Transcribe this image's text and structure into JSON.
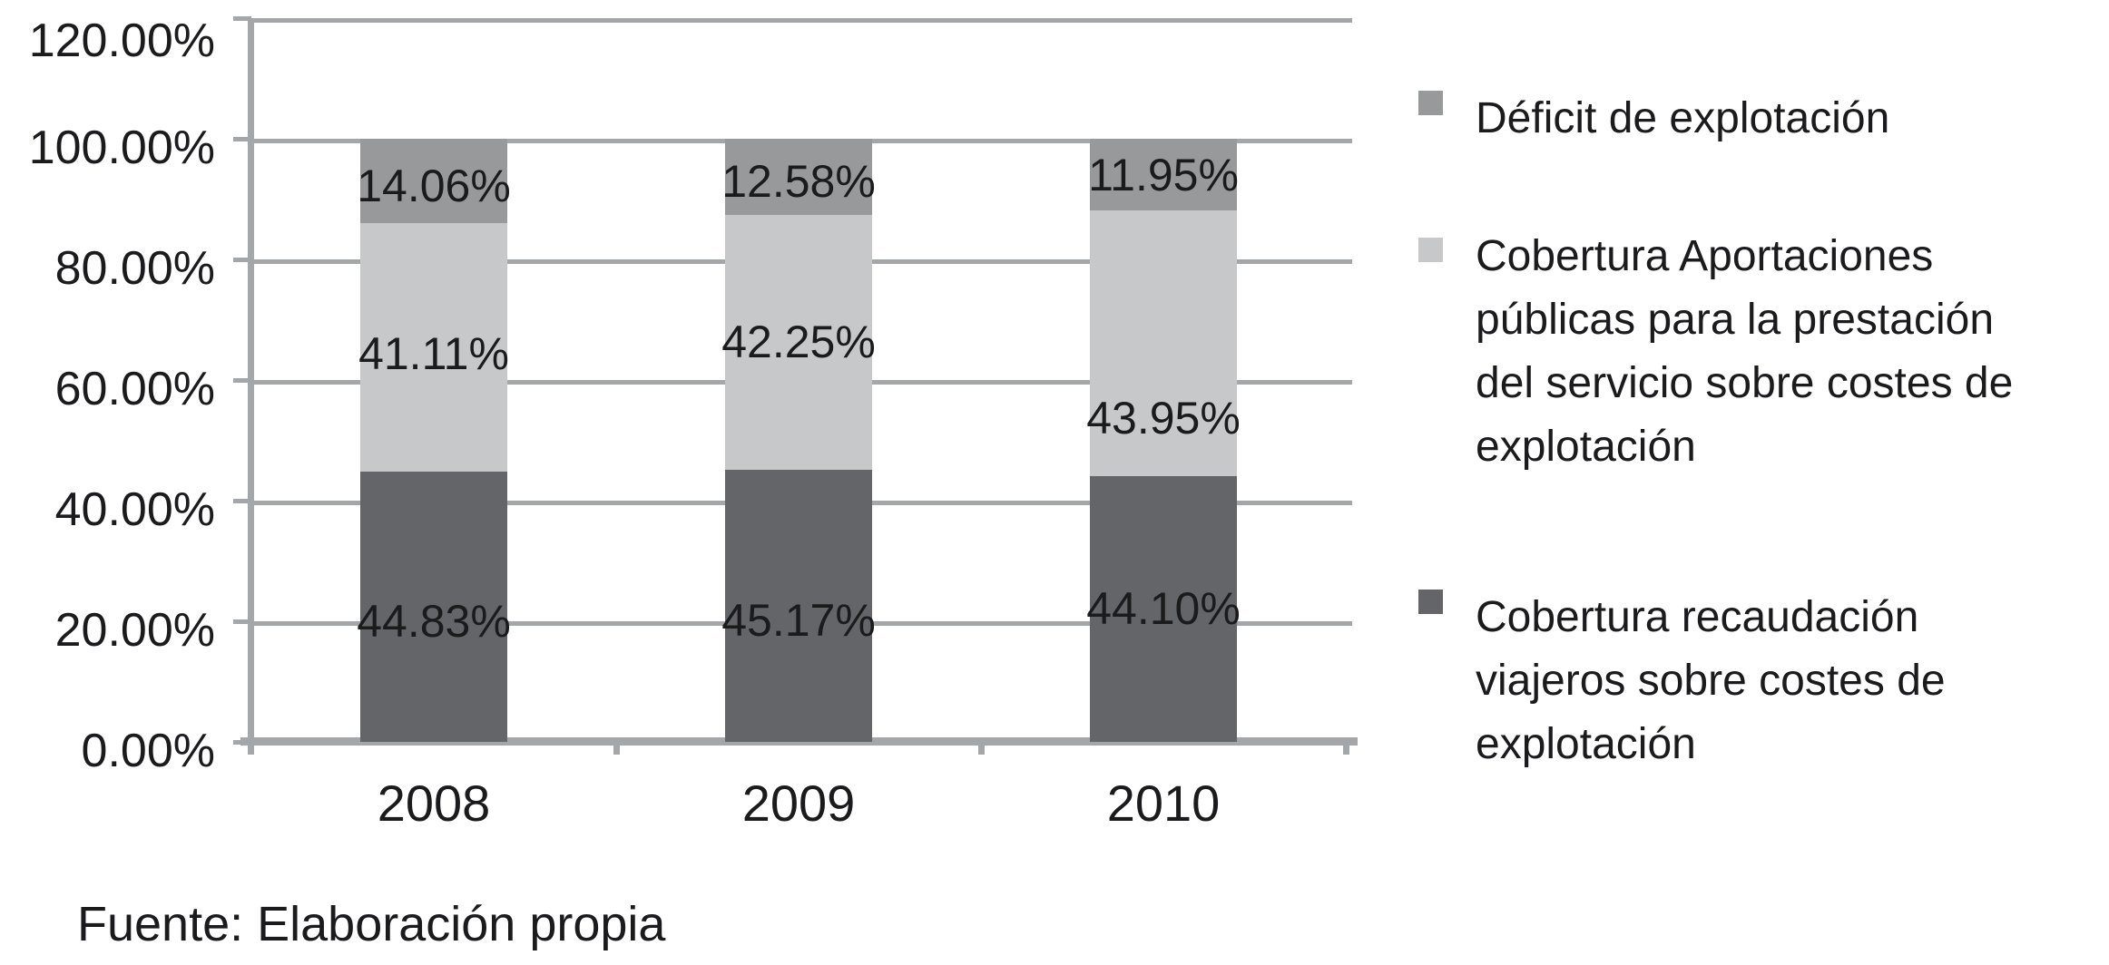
{
  "chart_data": {
    "type": "bar",
    "stacked": true,
    "orientation": "vertical",
    "categories": [
      "2008",
      "2009",
      "2010"
    ],
    "series": [
      {
        "name": "Cobertura recaudación viajeros sobre costes de explotación",
        "color": "#646569",
        "values": [
          44.83,
          45.17,
          44.1
        ],
        "label_dy": [
          16,
          16,
          0
        ]
      },
      {
        "name": "Cobertura Aportaciones públicas para la prestación del servicio sobre costes de explotación",
        "color": "#c7c8ca",
        "values": [
          41.11,
          42.25,
          43.95
        ],
        "label_dy": [
          7,
          0,
          82
        ]
      },
      {
        "name": "Déficit de explotación",
        "color": "#98999b",
        "values": [
          14.06,
          12.58,
          11.95
        ],
        "label_dy": [
          5,
          5,
          0
        ]
      }
    ],
    "value_labels": [
      [
        "44.83%",
        "45.17%",
        "44.10%"
      ],
      [
        "41.11%",
        "42.25%",
        "43.95%"
      ],
      [
        "14.06%",
        "12.58%",
        "11.95%"
      ]
    ],
    "title": "",
    "xlabel": "",
    "ylabel": "",
    "ylim": [
      0,
      120
    ],
    "y_tick_step": 20,
    "y_ticks_top_to_bottom": [
      "120.00%",
      "100.00%",
      "80.00%",
      "60.00%",
      "40.00%",
      "20.00%",
      "0.00%"
    ],
    "grid": true,
    "legend_position": "right"
  },
  "legend": {
    "items": [
      {
        "color": "#98999b",
        "label": "Déficit de explotación",
        "label_lines": [
          "Déficit de explotación"
        ]
      },
      {
        "color": "#c7c8ca",
        "label": "Cobertura Aportaciones públicas para la prestación del servicio sobre costes de explotación",
        "label_lines": [
          "Cobertura Aportaciones",
          "públicas para la prestación",
          "del servicio sobre costes de",
          "explotación"
        ]
      },
      {
        "color": "#646569",
        "label": "Cobertura recaudación viajeros sobre costes de explotación",
        "label_lines": [
          "Cobertura recaudación",
          "viajeros sobre costes de",
          "explotación"
        ]
      }
    ]
  },
  "source_note": "Fuente: Elaboración propia",
  "colors": {
    "background": "#ffffff",
    "grid": "#a4a7aa",
    "axis": "#a4a7aa",
    "text": "#1b1b1d",
    "segment_dark": "#646569",
    "segment_light": "#c7c8ca",
    "segment_medium": "#98999b"
  }
}
